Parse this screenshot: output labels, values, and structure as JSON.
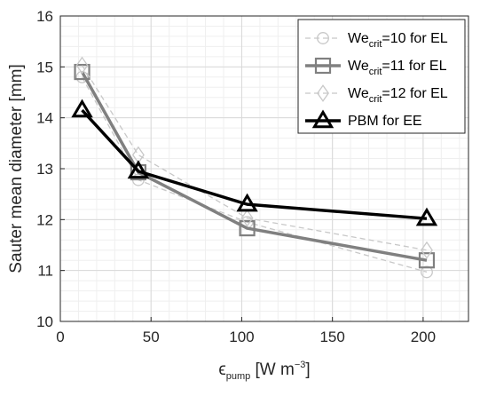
{
  "chart_data": {
    "type": "line",
    "xlabel": {
      "symbol": "ϵ",
      "sub": "pump",
      "unit": " [W m",
      "sup": "−3",
      "close": "]"
    },
    "ylabel": "Sauter mean diameter [mm]",
    "xlim": [
      0,
      225
    ],
    "ylim": [
      10,
      16
    ],
    "xticks": [
      0,
      50,
      100,
      150,
      200
    ],
    "yticks": [
      10,
      11,
      12,
      13,
      14,
      15,
      16
    ],
    "grid": true,
    "minor_grid": true,
    "legend_position": "top-right",
    "series": [
      {
        "name": "We_crit=10 for EL",
        "legend": {
          "pre": "We",
          "sub": "crit",
          "post": "=10 for EL"
        },
        "x": [
          12,
          43,
          103,
          202
        ],
        "y": [
          14.8,
          12.78,
          11.95,
          10.97
        ],
        "color": "#c8c8c8",
        "marker": "circle",
        "dashed": true,
        "width": 1.3
      },
      {
        "name": "We_crit=11 for EL",
        "legend": {
          "pre": "We",
          "sub": "crit",
          "post": "=11 for EL"
        },
        "x": [
          12,
          43,
          103,
          202
        ],
        "y": [
          14.9,
          12.93,
          11.83,
          11.2
        ],
        "color": "#808080",
        "marker": "square",
        "dashed": false,
        "width": 3.5
      },
      {
        "name": "We_crit=12 for EL",
        "legend": {
          "pre": "We",
          "sub": "crit",
          "post": "=12 for EL"
        },
        "x": [
          12,
          43,
          103,
          202
        ],
        "y": [
          15.03,
          13.27,
          12.03,
          11.4
        ],
        "color": "#c8c8c8",
        "marker": "diamond",
        "dashed": true,
        "width": 1.3
      },
      {
        "name": "PBM for EE",
        "legend": {
          "pre": "PBM for EE",
          "sub": "",
          "post": ""
        },
        "x": [
          12,
          43,
          103,
          202
        ],
        "y": [
          14.15,
          12.95,
          12.3,
          12.02
        ],
        "color": "#000000",
        "marker": "triangle",
        "dashed": false,
        "width": 3.5
      }
    ]
  }
}
